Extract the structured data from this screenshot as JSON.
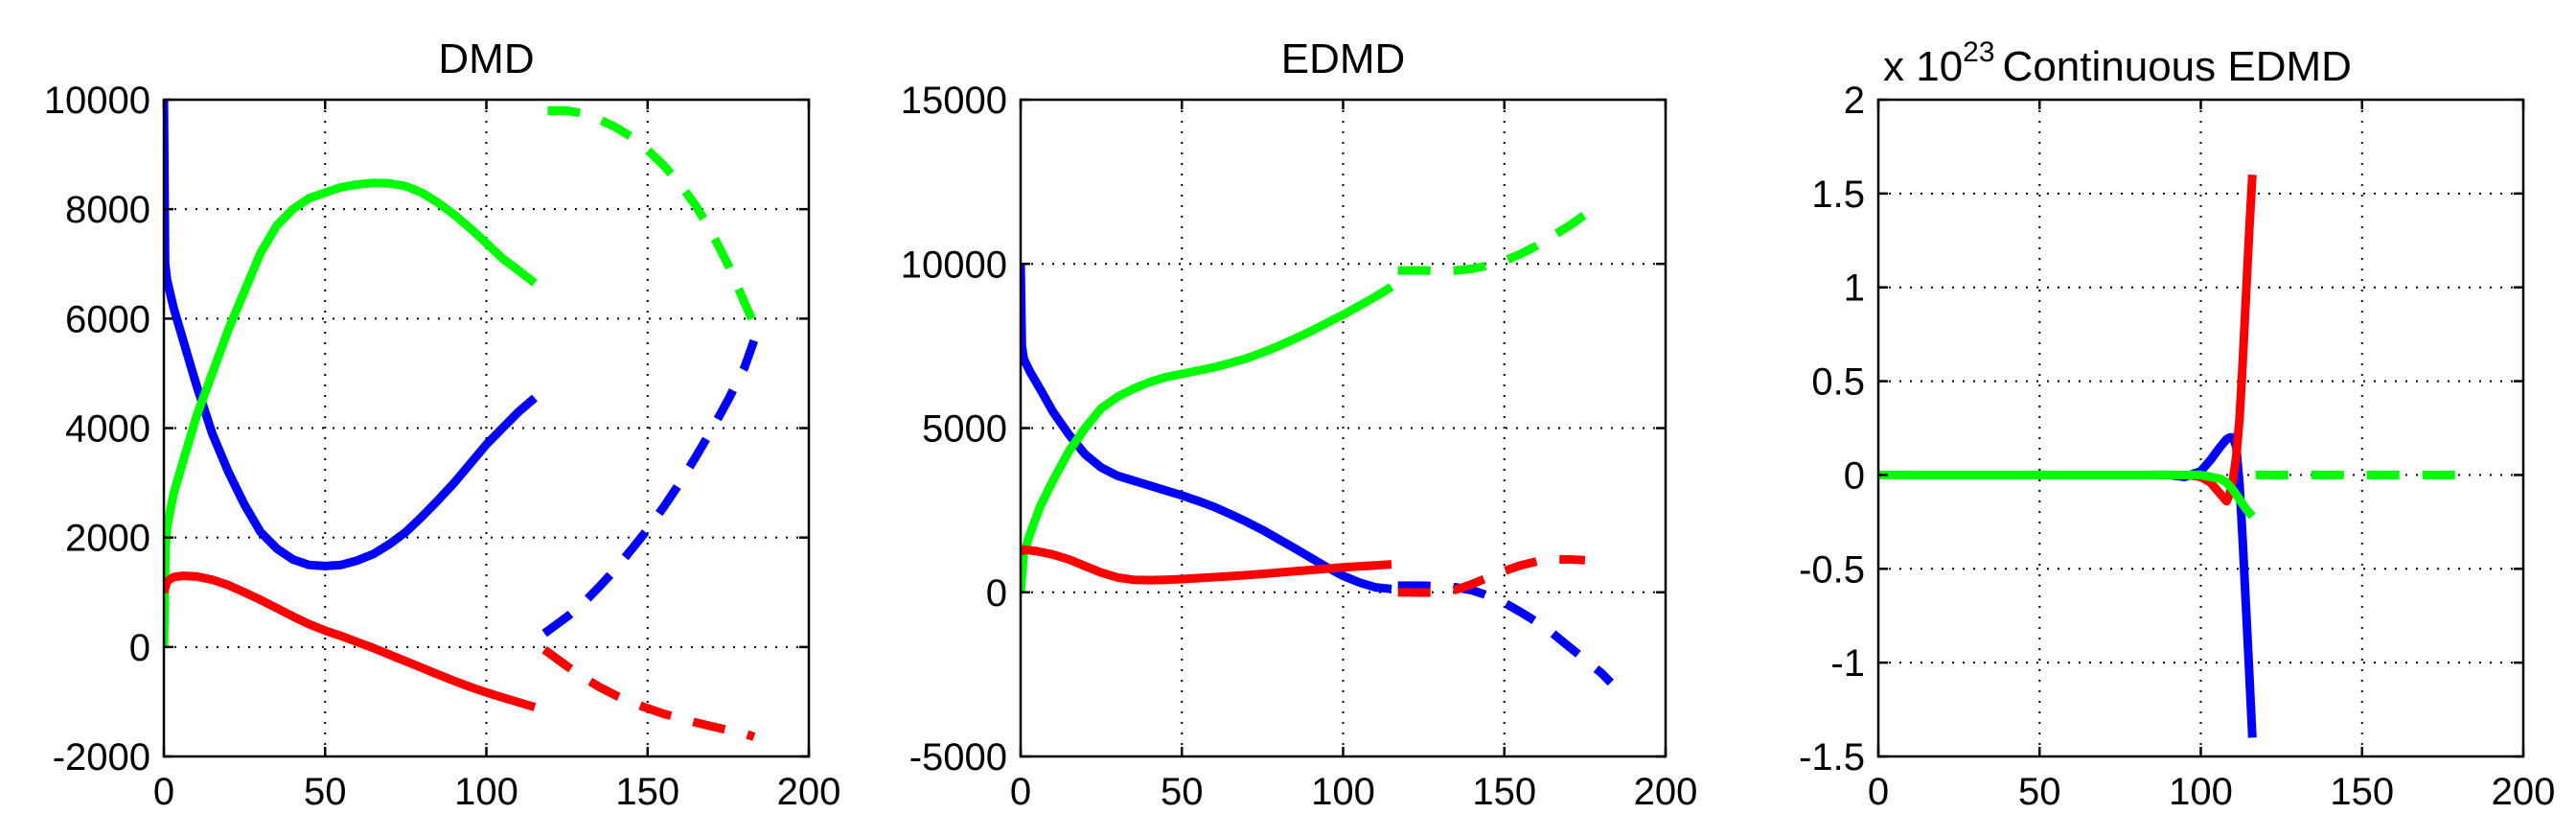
{
  "chart_data": [
    {
      "type": "line",
      "title": "DMD",
      "xlabel": "",
      "ylabel": "",
      "xlim": [
        0,
        200
      ],
      "ylim": [
        -2000,
        10000
      ],
      "xticks": [
        "0",
        "50",
        "100",
        "150",
        "200"
      ],
      "yticks": [
        "-2000",
        "0",
        "2000",
        "4000",
        "6000",
        "8000",
        "10000"
      ],
      "grid": true,
      "exponent_label": "",
      "series": [
        {
          "color": "#0000ff",
          "style": "solid",
          "x": [
            0,
            0.4,
            1,
            3,
            6,
            10,
            15,
            20,
            25,
            30,
            35,
            40,
            45,
            50,
            55,
            60,
            65,
            70,
            75,
            80,
            85,
            90,
            95,
            100,
            105,
            110,
            115
          ],
          "y": [
            10000,
            7000,
            6700,
            6200,
            5600,
            4800,
            3900,
            3200,
            2600,
            2100,
            1800,
            1600,
            1500,
            1480,
            1500,
            1580,
            1700,
            1880,
            2100,
            2380,
            2680,
            3000,
            3350,
            3700,
            4000,
            4300,
            4550
          ]
        },
        {
          "color": "#00ff00",
          "style": "solid",
          "x": [
            0,
            0.5,
            1,
            3,
            6,
            10,
            15,
            20,
            25,
            30,
            35,
            40,
            45,
            50,
            55,
            60,
            65,
            70,
            75,
            80,
            85,
            90,
            95,
            100,
            105,
            110,
            115
          ],
          "y": [
            0,
            1800,
            2200,
            2800,
            3400,
            4200,
            5000,
            5800,
            6500,
            7200,
            7700,
            8000,
            8200,
            8300,
            8400,
            8450,
            8480,
            8470,
            8420,
            8300,
            8120,
            7900,
            7650,
            7380,
            7100,
            6880,
            6650
          ]
        },
        {
          "color": "#ff0000",
          "style": "solid",
          "x": [
            0,
            1,
            3,
            6,
            10,
            15,
            20,
            25,
            30,
            35,
            40,
            45,
            50,
            55,
            60,
            65,
            70,
            75,
            80,
            85,
            90,
            95,
            100,
            105,
            110,
            115
          ],
          "y": [
            1000,
            1200,
            1280,
            1300,
            1290,
            1230,
            1130,
            1000,
            860,
            710,
            560,
            420,
            300,
            200,
            90,
            -20,
            -140,
            -260,
            -380,
            -500,
            -620,
            -730,
            -830,
            -920,
            -1010,
            -1100
          ]
        },
        {
          "color": "#00ff00",
          "style": "dashed",
          "x": [
            119,
            125,
            130,
            135,
            140,
            145,
            150,
            155,
            160,
            165,
            170,
            175,
            180,
            183
          ],
          "y": [
            9800,
            9800,
            9750,
            9640,
            9500,
            9320,
            9080,
            8800,
            8460,
            8060,
            7560,
            6980,
            6300,
            5900
          ]
        },
        {
          "color": "#0000ff",
          "style": "dashed",
          "x": [
            118,
            125,
            130,
            135,
            140,
            145,
            150,
            155,
            160,
            165,
            170,
            175,
            180,
            183
          ],
          "y": [
            250,
            550,
            800,
            1100,
            1420,
            1780,
            2150,
            2560,
            3000,
            3480,
            3980,
            4520,
            5100,
            5600
          ]
        },
        {
          "color": "#ff0000",
          "style": "dashed",
          "x": [
            118,
            125,
            130,
            135,
            140,
            145,
            150,
            155,
            160,
            165,
            170,
            175,
            180,
            183
          ],
          "y": [
            -50,
            -350,
            -550,
            -730,
            -880,
            -1010,
            -1120,
            -1220,
            -1300,
            -1380,
            -1450,
            -1520,
            -1580,
            -1640
          ]
        }
      ]
    },
    {
      "type": "line",
      "title": "EDMD",
      "xlabel": "",
      "ylabel": "",
      "xlim": [
        0,
        200
      ],
      "ylim": [
        -5000,
        15000
      ],
      "xticks": [
        "0",
        "50",
        "100",
        "150",
        "200"
      ],
      "yticks": [
        "-5000",
        "0",
        "5000",
        "10000",
        "15000"
      ],
      "grid": true,
      "exponent_label": "",
      "series": [
        {
          "color": "#0000ff",
          "style": "solid",
          "x": [
            0,
            0.4,
            1,
            3,
            6,
            10,
            15,
            20,
            25,
            30,
            35,
            40,
            45,
            50,
            55,
            60,
            65,
            70,
            75,
            80,
            85,
            90,
            95,
            100,
            105,
            110,
            115
          ],
          "y": [
            10000,
            7500,
            7100,
            6700,
            6200,
            5500,
            4800,
            4200,
            3800,
            3550,
            3400,
            3250,
            3100,
            2950,
            2780,
            2600,
            2380,
            2150,
            1900,
            1620,
            1340,
            1050,
            760,
            500,
            300,
            150,
            100
          ]
        },
        {
          "color": "#00ff00",
          "style": "solid",
          "x": [
            0,
            1,
            3,
            6,
            10,
            15,
            20,
            25,
            30,
            35,
            40,
            45,
            50,
            55,
            60,
            65,
            70,
            75,
            80,
            85,
            90,
            95,
            100,
            105,
            110,
            115
          ],
          "y": [
            0,
            1200,
            1800,
            2600,
            3400,
            4300,
            5000,
            5600,
            5950,
            6200,
            6400,
            6550,
            6650,
            6750,
            6850,
            6980,
            7120,
            7300,
            7500,
            7720,
            7950,
            8200,
            8450,
            8720,
            9000,
            9300
          ]
        },
        {
          "color": "#ff0000",
          "style": "solid",
          "x": [
            0,
            1,
            5,
            10,
            15,
            20,
            25,
            30,
            35,
            40,
            45,
            50,
            55,
            60,
            65,
            70,
            75,
            80,
            85,
            90,
            95,
            100,
            105,
            110,
            115
          ],
          "y": [
            1200,
            1300,
            1250,
            1150,
            1000,
            800,
            600,
            450,
            380,
            370,
            380,
            400,
            430,
            460,
            490,
            520,
            560,
            600,
            640,
            680,
            720,
            760,
            790,
            820,
            850
          ]
        },
        {
          "color": "#00ff00",
          "style": "dashed",
          "x": [
            117,
            125,
            130,
            135,
            140,
            145,
            150,
            155,
            160,
            165,
            170,
            175
          ],
          "y": [
            9800,
            9800,
            9780,
            9800,
            9850,
            9950,
            10100,
            10300,
            10550,
            10850,
            11150,
            11500
          ]
        },
        {
          "color": "#0000ff",
          "style": "dashed",
          "x": [
            117,
            125,
            130,
            135,
            140,
            145,
            150,
            155,
            160,
            165,
            170,
            175,
            180,
            183
          ],
          "y": [
            200,
            200,
            180,
            150,
            60,
            -100,
            -320,
            -600,
            -900,
            -1250,
            -1650,
            -2050,
            -2450,
            -2750
          ]
        },
        {
          "color": "#ff0000",
          "style": "dashed",
          "x": [
            117,
            125,
            130,
            135,
            140,
            145,
            150,
            155,
            160,
            165,
            170,
            175
          ],
          "y": [
            0,
            -10,
            0,
            80,
            250,
            450,
            650,
            820,
            940,
            1000,
            1000,
            980
          ]
        }
      ]
    },
    {
      "type": "line",
      "title": "Continuous EDMD",
      "xlabel": "",
      "ylabel": "",
      "xlim": [
        0,
        200
      ],
      "ylim": [
        -1.5,
        2
      ],
      "xticks": [
        "0",
        "50",
        "100",
        "150",
        "200"
      ],
      "yticks": [
        "-1.5",
        "-1",
        "-0.5",
        "0",
        "0.5",
        "1",
        "1.5",
        "2"
      ],
      "grid": true,
      "exponent_label": {
        "base": "x 10",
        "power": "23"
      },
      "series": [
        {
          "color": "#0000ff",
          "style": "solid",
          "x": [
            86,
            90,
            95,
            100,
            103,
            106,
            108,
            109,
            110,
            111,
            112,
            113,
            114,
            115,
            116
          ],
          "y": [
            0,
            0,
            -0.01,
            0.02,
            0.08,
            0.15,
            0.19,
            0.2,
            0.2,
            0.15,
            -0.05,
            -0.35,
            -0.7,
            -1.05,
            -1.4
          ]
        },
        {
          "color": "#ff0000",
          "style": "solid",
          "x": [
            96,
            100,
            103,
            105,
            107,
            108,
            109,
            110,
            111,
            112,
            113,
            114,
            115,
            116
          ],
          "y": [
            0,
            -0.01,
            -0.04,
            -0.08,
            -0.12,
            -0.14,
            -0.1,
            -0.02,
            0.1,
            0.3,
            0.6,
            0.95,
            1.3,
            1.6
          ]
        },
        {
          "color": "#00ff00",
          "style": "solid",
          "x": [
            0,
            20,
            40,
            60,
            80,
            95,
            100,
            103,
            106,
            108,
            110,
            112,
            114,
            116
          ],
          "y": [
            0,
            0,
            0,
            0,
            0,
            0,
            0,
            -0.01,
            -0.02,
            -0.04,
            -0.08,
            -0.13,
            -0.18,
            -0.22
          ]
        },
        {
          "color": "#00ff00",
          "style": "dashed",
          "x": [
            117,
            130,
            140,
            150,
            160,
            170,
            180,
            183
          ],
          "y": [
            0,
            0,
            0,
            0,
            0,
            0,
            0,
            0
          ]
        }
      ]
    }
  ]
}
